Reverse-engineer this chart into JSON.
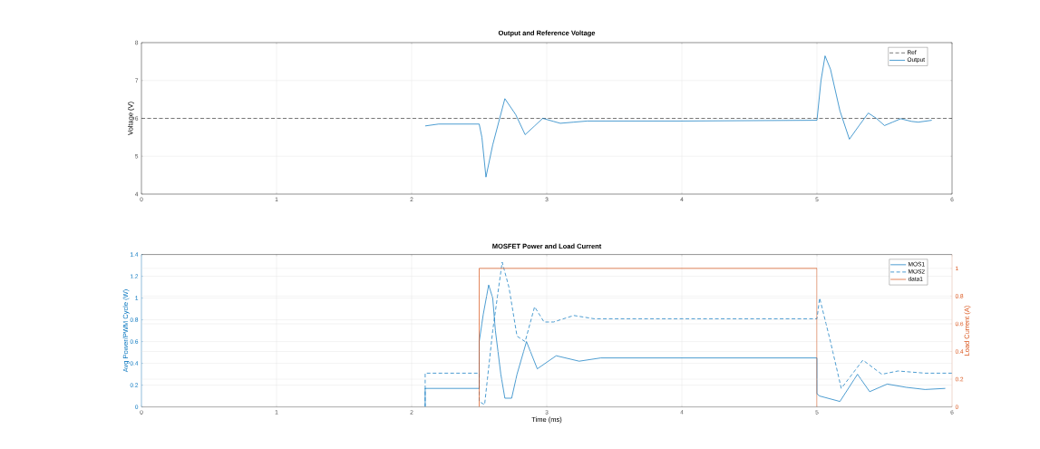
{
  "chart_data": [
    {
      "type": "line",
      "title": "Output and Reference Voltage",
      "ylabel": "Voltage (V)",
      "xlim": [
        0,
        6
      ],
      "xticks": [
        0,
        1,
        2,
        3,
        4,
        5,
        6
      ],
      "ylim": [
        4,
        8
      ],
      "yticks": [
        4,
        5,
        6,
        7,
        8
      ],
      "grid": true,
      "legend": "top right",
      "marker": "none",
      "series": [
        {
          "name": "Ref",
          "color": "#404040",
          "line_style": "dashed",
          "x": [
            0,
            6
          ],
          "values": [
            6,
            6
          ]
        },
        {
          "name": "Output",
          "color": "#0072bd",
          "line_style": "solid",
          "x": [
            2.1,
            2.2,
            2.5,
            2.52,
            2.55,
            2.6,
            2.69,
            2.77,
            2.84,
            2.91,
            2.97,
            3.05,
            3.1,
            3.2,
            3.3,
            3.5,
            4,
            5.0,
            5.03,
            5.06,
            5.1,
            5.17,
            5.24,
            5.31,
            5.38,
            5.44,
            5.5,
            5.56,
            5.62,
            5.7,
            5.75,
            5.85
          ],
          "values": [
            5.8,
            5.85,
            5.85,
            5.5,
            4.45,
            5.3,
            6.52,
            6.1,
            5.57,
            5.8,
            6.0,
            5.92,
            5.87,
            5.9,
            5.93,
            5.93,
            5.93,
            5.95,
            7.0,
            7.65,
            7.3,
            6.2,
            5.45,
            5.8,
            6.14,
            6.0,
            5.81,
            5.9,
            5.99,
            5.92,
            5.9,
            5.95
          ]
        }
      ]
    },
    {
      "type": "line",
      "title": "MOSFET Power and Load Current",
      "xlabel": "Time (ms)",
      "ylabel": "Avg Power/PWM Cycle (W)",
      "y2label": "Load Current (A)",
      "xlim": [
        0,
        6
      ],
      "xticks": [
        0,
        1,
        2,
        3,
        4,
        5,
        6
      ],
      "ylim": [
        0,
        1.4
      ],
      "yticks": [
        0,
        0.2,
        0.4,
        0.6,
        0.8,
        1,
        1.2,
        1.4
      ],
      "y2lim": [
        0,
        1.1
      ],
      "y2ticks": [
        0,
        0.2,
        0.4,
        0.6,
        0.8,
        1
      ],
      "grid": true,
      "legend": "top right",
      "marker": "none",
      "series": [
        {
          "name": "MOS1",
          "color": "#0072bd",
          "line_style": "solid",
          "x": [
            2.1,
            2.1,
            2.5,
            2.5,
            2.53,
            2.57,
            2.6,
            2.62,
            2.66,
            2.69,
            2.74,
            2.78,
            2.85,
            2.93,
            3.07,
            3.24,
            3.4,
            5.0,
            5.0,
            5.02,
            5.17,
            5.3,
            5.39,
            5.52,
            5.66,
            5.8,
            5.95
          ],
          "values": [
            0,
            0.17,
            0.17,
            0.6,
            0.85,
            1.12,
            1.0,
            0.7,
            0.3,
            0.08,
            0.08,
            0.3,
            0.6,
            0.35,
            0.47,
            0.42,
            0.45,
            0.45,
            0.12,
            0.1,
            0.05,
            0.3,
            0.14,
            0.21,
            0.18,
            0.16,
            0.17
          ]
        },
        {
          "name": "MOS2",
          "color": "#0072bd",
          "line_style": "dashed",
          "x": [
            2.1,
            2.1,
            2.5,
            2.5,
            2.54,
            2.6,
            2.67,
            2.72,
            2.78,
            2.84,
            2.91,
            2.98,
            3.05,
            3.2,
            3.35,
            5.0,
            5.02,
            5.1,
            5.18,
            5.26,
            5.34,
            5.48,
            5.6,
            5.8,
            6.0
          ],
          "values": [
            0,
            0.31,
            0.31,
            0.05,
            0.02,
            0.7,
            1.33,
            1.1,
            0.65,
            0.6,
            0.92,
            0.78,
            0.78,
            0.84,
            0.81,
            0.81,
            1.0,
            0.6,
            0.17,
            0.3,
            0.43,
            0.3,
            0.33,
            0.31,
            0.31
          ]
        },
        {
          "name": "data1",
          "color": "#d95319",
          "line_style": "solid",
          "axis": "y2",
          "x": [
            2.5,
            2.5,
            5,
            5
          ],
          "values": [
            0,
            1,
            1,
            0
          ]
        }
      ]
    }
  ]
}
